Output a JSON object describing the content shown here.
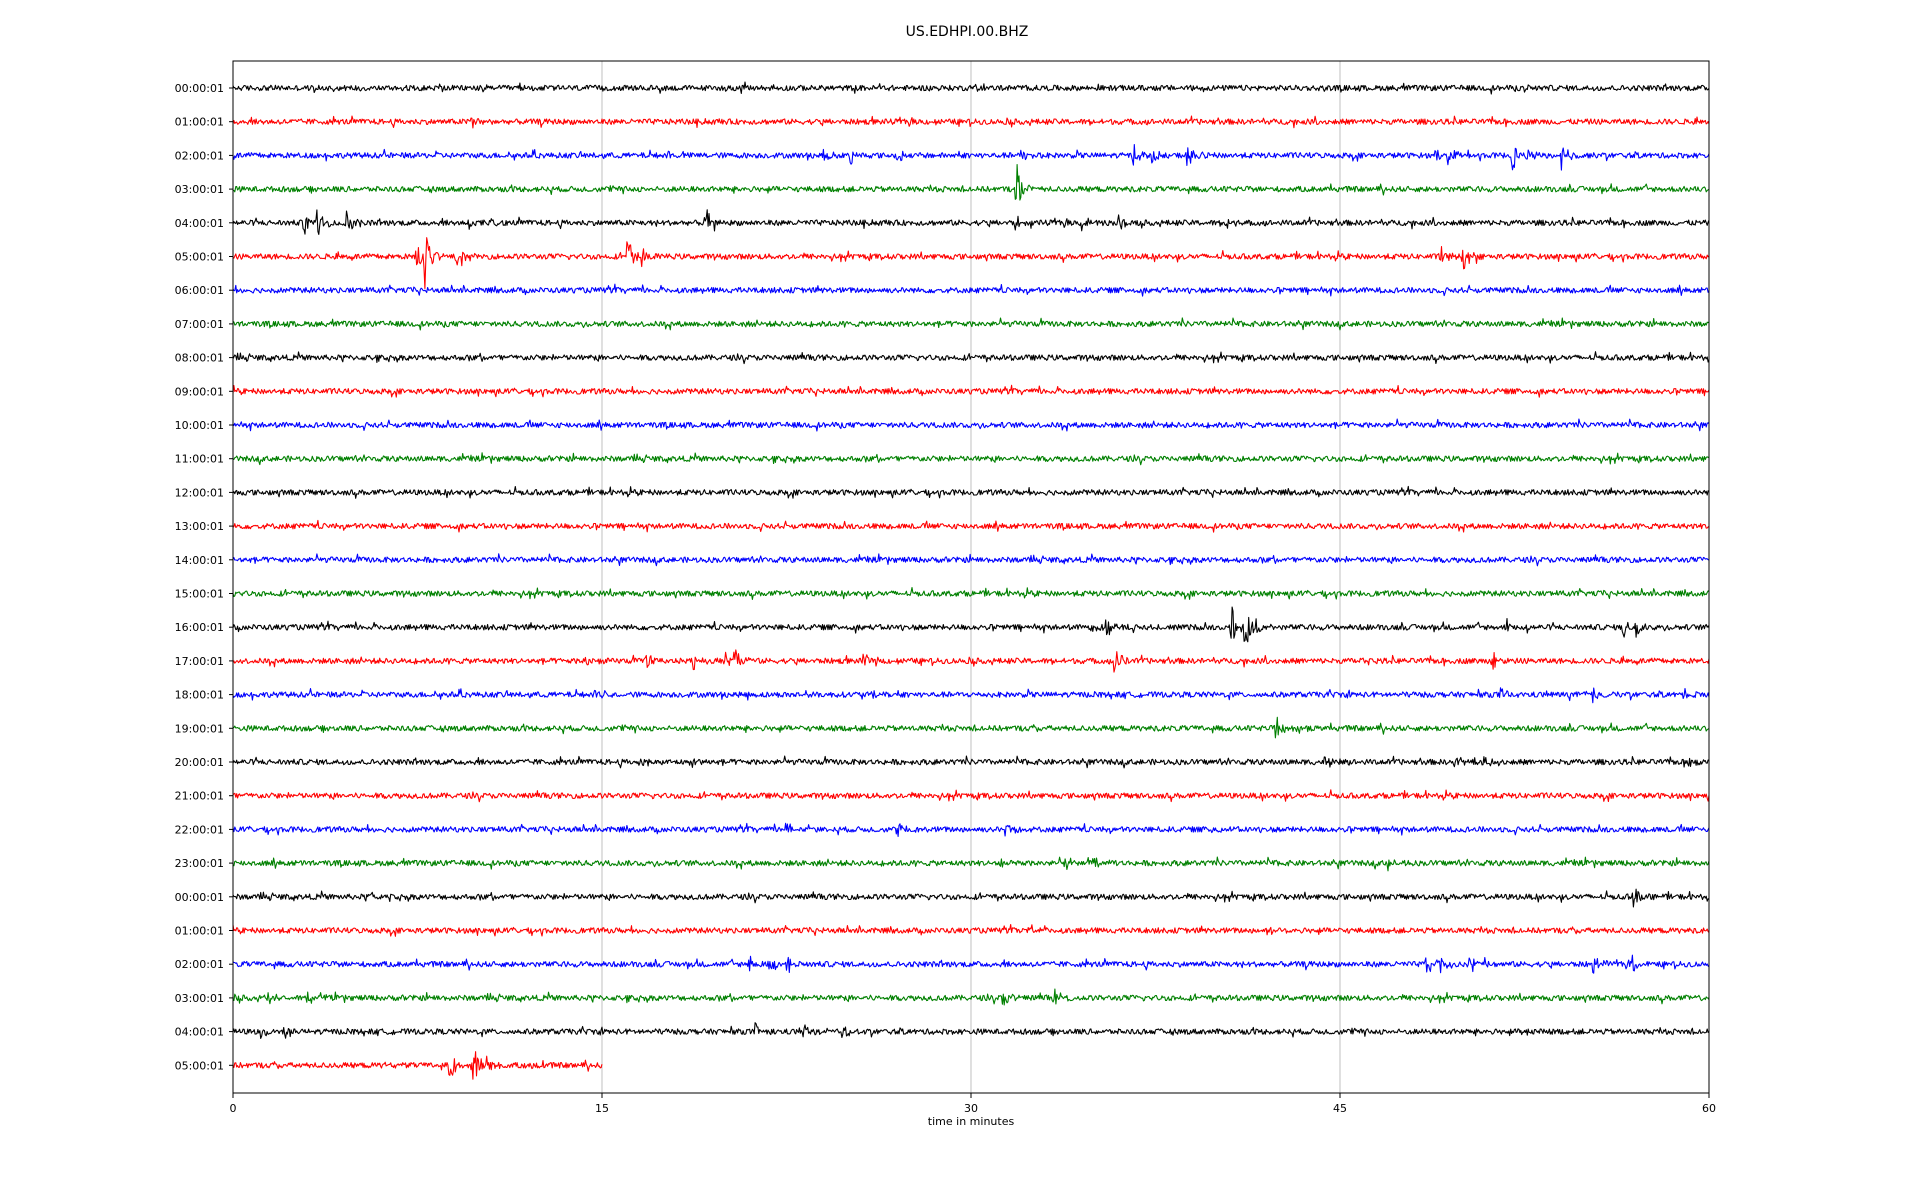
{
  "chart_data": {
    "type": "line",
    "title": "US.EDHPI.00.BHZ",
    "xlabel": "time in minutes",
    "ylabel": "",
    "xlim": [
      0,
      60
    ],
    "x_ticks": [
      0,
      15,
      30,
      45,
      60
    ],
    "grid": "vertical lines at x ticks",
    "legend": "none",
    "colors": [
      "#000000",
      "#ff0000",
      "#0000ff",
      "#008000"
    ],
    "traces": [
      {
        "label": "00:00:01",
        "color": "#000000",
        "end_minute": 60,
        "events": [
          {
            "t": 10.0,
            "a": 0.12
          },
          {
            "t": 30.0,
            "a": 0.14
          },
          {
            "t": 52.5,
            "a": 0.16
          }
        ]
      },
      {
        "label": "01:00:01",
        "color": "#ff0000",
        "end_minute": 60,
        "events": [
          {
            "t": 9.7,
            "a": 0.3
          }
        ]
      },
      {
        "label": "02:00:01",
        "color": "#0000ff",
        "end_minute": 60,
        "events": [
          {
            "t": 24.0,
            "a": 0.35
          },
          {
            "t": 25.1,
            "a": 0.45
          },
          {
            "t": 27.0,
            "a": 0.35
          },
          {
            "t": 32.0,
            "a": 0.3
          },
          {
            "t": 36.6,
            "a": 0.45
          },
          {
            "t": 37.3,
            "a": 0.6
          },
          {
            "t": 38.8,
            "a": 0.5
          },
          {
            "t": 48.8,
            "a": 0.4
          },
          {
            "t": 49.4,
            "a": 0.3
          },
          {
            "t": 52.0,
            "a": 0.6
          },
          {
            "t": 52.6,
            "a": 0.3
          },
          {
            "t": 54.0,
            "a": 0.5
          }
        ]
      },
      {
        "label": "03:00:01",
        "color": "#008000",
        "end_minute": 60,
        "events": [
          {
            "t": 31.8,
            "a": 1.5
          }
        ]
      },
      {
        "label": "04:00:01",
        "color": "#000000",
        "end_minute": 60,
        "events": [
          {
            "t": 2.9,
            "a": 0.45
          },
          {
            "t": 3.4,
            "a": 0.7
          },
          {
            "t": 4.6,
            "a": 0.5
          },
          {
            "t": 9.6,
            "a": 0.25
          },
          {
            "t": 10.5,
            "a": 0.25
          },
          {
            "t": 19.2,
            "a": 0.65
          },
          {
            "t": 31.8,
            "a": 0.3
          },
          {
            "t": 34.5,
            "a": 0.3
          },
          {
            "t": 36.0,
            "a": 0.25
          },
          {
            "t": 40.3,
            "a": 0.3
          }
        ]
      },
      {
        "label": "05:00:01",
        "color": "#ff0000",
        "end_minute": 60,
        "events": [
          {
            "t": 7.4,
            "a": 0.55
          },
          {
            "t": 7.8,
            "a": 1.3
          },
          {
            "t": 9.1,
            "a": 0.75
          },
          {
            "t": 16.0,
            "a": 0.95
          },
          {
            "t": 16.6,
            "a": 0.35
          },
          {
            "t": 49.1,
            "a": 0.4
          },
          {
            "t": 50.0,
            "a": 0.65
          }
        ]
      },
      {
        "label": "06:00:01",
        "color": "#0000ff",
        "end_minute": 60,
        "events": []
      },
      {
        "label": "07:00:01",
        "color": "#008000",
        "end_minute": 60,
        "events": []
      },
      {
        "label": "08:00:01",
        "color": "#000000",
        "end_minute": 60,
        "events": []
      },
      {
        "label": "09:00:01",
        "color": "#ff0000",
        "end_minute": 60,
        "events": []
      },
      {
        "label": "10:00:01",
        "color": "#0000ff",
        "end_minute": 60,
        "events": []
      },
      {
        "label": "11:00:01",
        "color": "#008000",
        "end_minute": 60,
        "events": []
      },
      {
        "label": "12:00:01",
        "color": "#000000",
        "end_minute": 60,
        "events": []
      },
      {
        "label": "13:00:01",
        "color": "#ff0000",
        "end_minute": 60,
        "events": []
      },
      {
        "label": "14:00:01",
        "color": "#0000ff",
        "end_minute": 60,
        "events": []
      },
      {
        "label": "15:00:01",
        "color": "#008000",
        "end_minute": 60,
        "events": []
      },
      {
        "label": "16:00:01",
        "color": "#000000",
        "end_minute": 60,
        "events": [
          {
            "t": 34.8,
            "a": 0.35
          },
          {
            "t": 35.5,
            "a": 0.5
          },
          {
            "t": 37.6,
            "a": 0.3
          },
          {
            "t": 40.6,
            "a": 1.0
          },
          {
            "t": 41.1,
            "a": 1.2
          },
          {
            "t": 41.6,
            "a": 0.6
          },
          {
            "t": 51.8,
            "a": 0.3
          },
          {
            "t": 56.5,
            "a": 0.45
          },
          {
            "t": 57.0,
            "a": 0.35
          }
        ]
      },
      {
        "label": "17:00:01",
        "color": "#ff0000",
        "end_minute": 60,
        "events": [
          {
            "t": 14.3,
            "a": 0.25
          },
          {
            "t": 16.8,
            "a": 0.4
          },
          {
            "t": 18.7,
            "a": 0.35
          },
          {
            "t": 20.0,
            "a": 0.3
          },
          {
            "t": 20.4,
            "a": 0.6
          },
          {
            "t": 25.6,
            "a": 0.3
          },
          {
            "t": 35.8,
            "a": 0.9
          },
          {
            "t": 45.8,
            "a": 0.2
          },
          {
            "t": 51.2,
            "a": 0.4
          }
        ]
      },
      {
        "label": "18:00:01",
        "color": "#0000ff",
        "end_minute": 60,
        "events": [
          {
            "t": 14.9,
            "a": 0.25
          },
          {
            "t": 26.0,
            "a": 0.3
          },
          {
            "t": 51.5,
            "a": 0.3
          },
          {
            "t": 55.3,
            "a": 0.35
          },
          {
            "t": 59.0,
            "a": 0.2
          }
        ]
      },
      {
        "label": "19:00:01",
        "color": "#008000",
        "end_minute": 60,
        "events": [
          {
            "t": 42.4,
            "a": 0.55
          },
          {
            "t": 43.3,
            "a": 0.35
          }
        ]
      },
      {
        "label": "20:00:01",
        "color": "#000000",
        "end_minute": 60,
        "events": [
          {
            "t": 16.5,
            "a": 0.25
          },
          {
            "t": 18.5,
            "a": 0.35
          },
          {
            "t": 44.4,
            "a": 0.3
          },
          {
            "t": 49.6,
            "a": 0.4
          },
          {
            "t": 50.8,
            "a": 0.3
          },
          {
            "t": 59.1,
            "a": 0.25
          }
        ]
      },
      {
        "label": "21:00:01",
        "color": "#ff0000",
        "end_minute": 60,
        "events": []
      },
      {
        "label": "22:00:01",
        "color": "#0000ff",
        "end_minute": 60,
        "events": [
          {
            "t": 22.5,
            "a": 0.3
          },
          {
            "t": 23.4,
            "a": 0.25
          },
          {
            "t": 27.0,
            "a": 0.25
          },
          {
            "t": 31.4,
            "a": 0.4
          },
          {
            "t": 39.8,
            "a": 0.2
          }
        ]
      },
      {
        "label": "23:00:01",
        "color": "#008000",
        "end_minute": 60,
        "events": [
          {
            "t": 31.2,
            "a": 0.3
          },
          {
            "t": 33.8,
            "a": 0.3
          },
          {
            "t": 35.0,
            "a": 0.3
          },
          {
            "t": 46.9,
            "a": 0.35
          }
        ]
      },
      {
        "label": "00:00:01",
        "color": "#000000",
        "end_minute": 60,
        "events": [
          {
            "t": 5.6,
            "a": 0.2
          },
          {
            "t": 56.9,
            "a": 0.55
          }
        ]
      },
      {
        "label": "01:00:01",
        "color": "#ff0000",
        "end_minute": 60,
        "events": [
          {
            "t": 32.0,
            "a": 0.2
          },
          {
            "t": 42.0,
            "a": 0.2
          }
        ]
      },
      {
        "label": "02:00:01",
        "color": "#0000ff",
        "end_minute": 60,
        "events": [
          {
            "t": 21.0,
            "a": 0.4
          },
          {
            "t": 21.8,
            "a": 0.45
          },
          {
            "t": 22.5,
            "a": 0.4
          },
          {
            "t": 48.5,
            "a": 0.55
          },
          {
            "t": 49.1,
            "a": 0.4
          },
          {
            "t": 50.3,
            "a": 0.45
          },
          {
            "t": 55.3,
            "a": 0.5
          },
          {
            "t": 56.9,
            "a": 0.4
          }
        ]
      },
      {
        "label": "03:00:01",
        "color": "#008000",
        "end_minute": 60,
        "events": [
          {
            "t": 1.3,
            "a": 0.35
          },
          {
            "t": 3.0,
            "a": 0.3
          },
          {
            "t": 31.3,
            "a": 0.5
          },
          {
            "t": 33.4,
            "a": 0.3
          }
        ]
      },
      {
        "label": "04:00:01",
        "color": "#000000",
        "end_minute": 60,
        "events": [
          {
            "t": 1.1,
            "a": 0.3
          },
          {
            "t": 2.1,
            "a": 0.35
          },
          {
            "t": 21.2,
            "a": 0.35
          },
          {
            "t": 23.2,
            "a": 0.25
          },
          {
            "t": 24.8,
            "a": 0.4
          },
          {
            "t": 52.4,
            "a": 0.2
          }
        ]
      },
      {
        "label": "05:00:01",
        "color": "#ff0000",
        "end_minute": 15,
        "events": [
          {
            "t": 6.2,
            "a": 0.25
          },
          {
            "t": 8.8,
            "a": 0.55
          },
          {
            "t": 9.7,
            "a": 1.1
          },
          {
            "t": 10.3,
            "a": 0.5
          },
          {
            "t": 11.8,
            "a": 0.25
          }
        ]
      }
    ]
  }
}
